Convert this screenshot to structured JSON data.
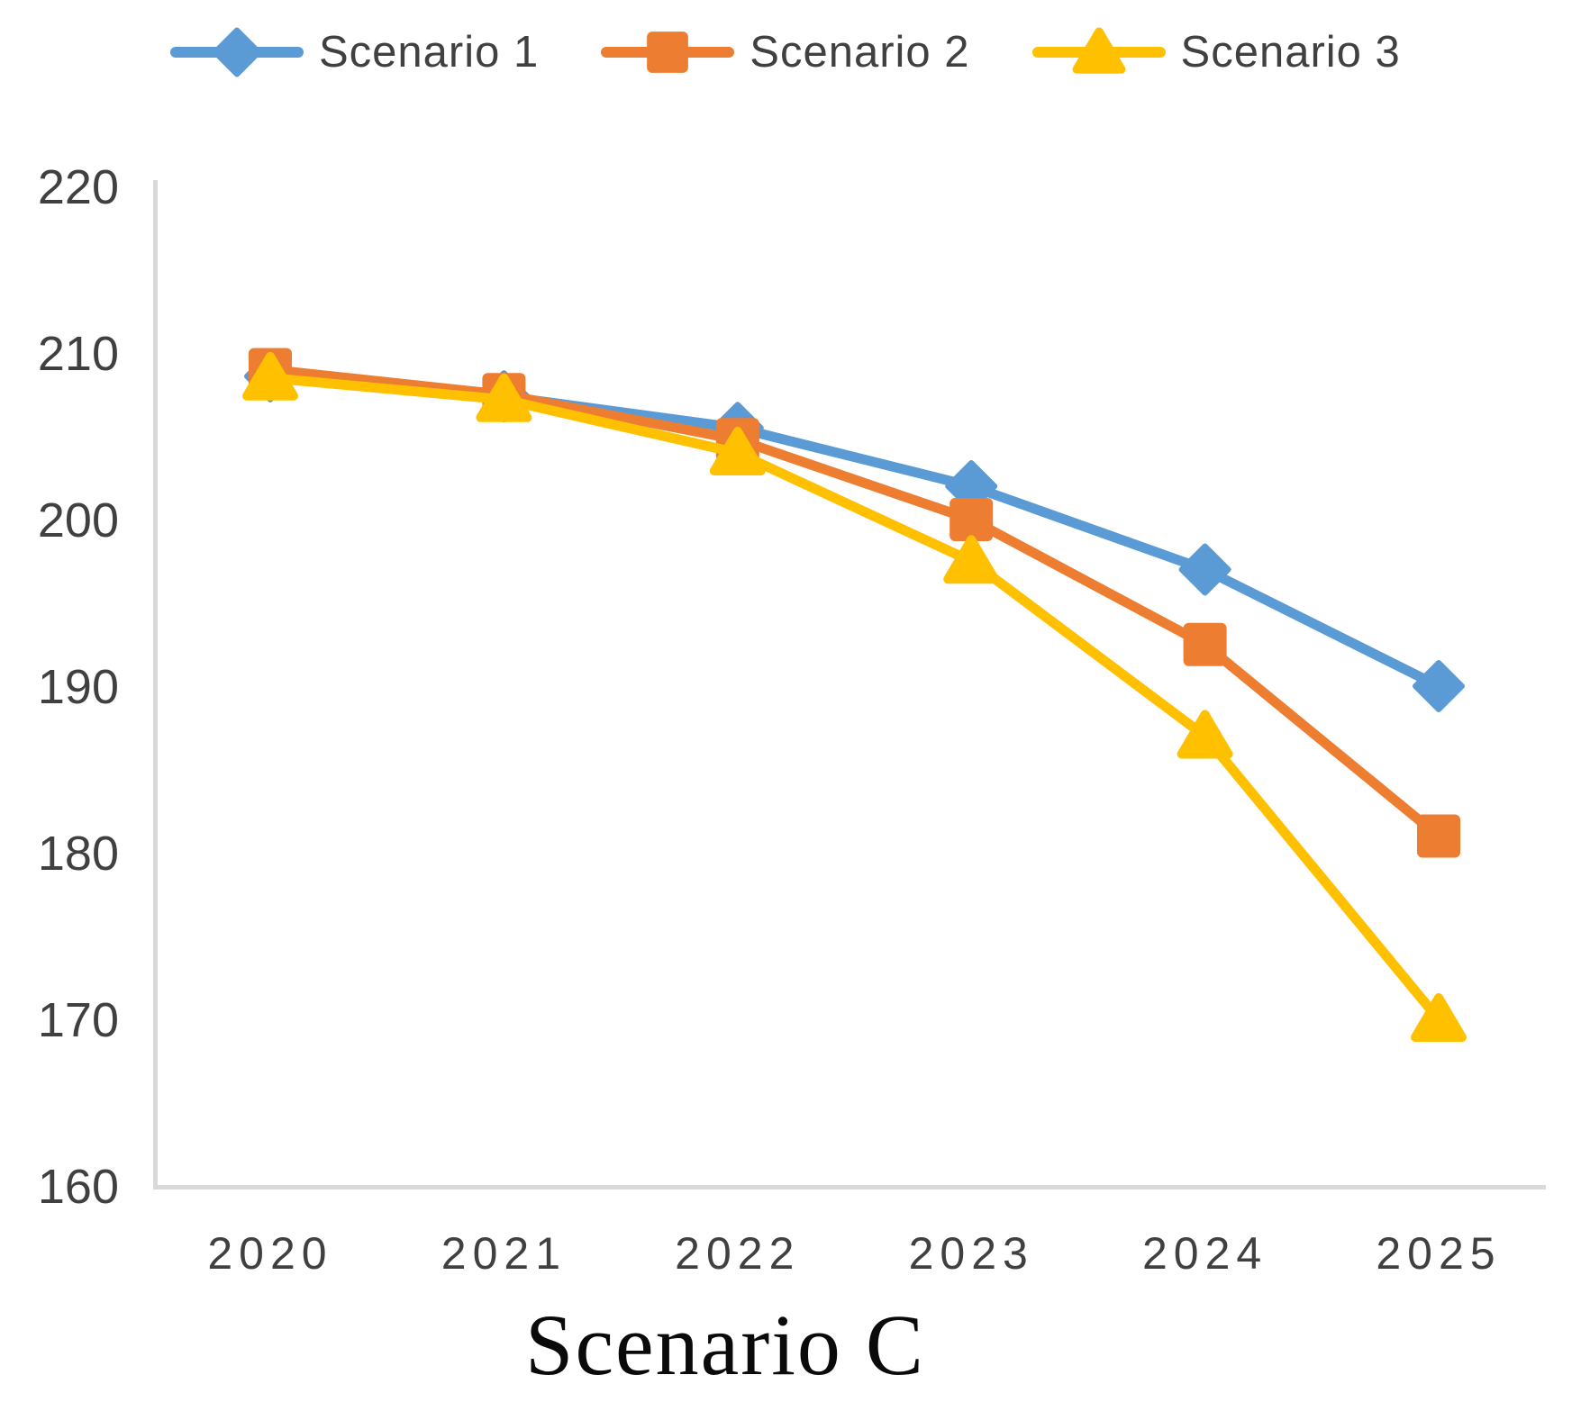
{
  "chart_data": {
    "type": "line",
    "title": "Scenario C",
    "xlabel": "",
    "ylabel": "",
    "x": [
      2020,
      2021,
      2022,
      2023,
      2024,
      2025
    ],
    "xticks": [
      "2020",
      "2021",
      "2022",
      "2023",
      "2024",
      "2025"
    ],
    "yticks": [
      "220",
      "210",
      "200",
      "190",
      "180",
      "170",
      "160"
    ],
    "ylim": [
      160,
      220
    ],
    "ytick_step": 10,
    "grid": false,
    "legend_position": "top",
    "series": [
      {
        "name": "Scenario 1",
        "color": "#5B9BD5",
        "marker": "diamond",
        "values": [
          208.6,
          207.4,
          205.5,
          202.0,
          197.0,
          190.0
        ]
      },
      {
        "name": "Scenario 2",
        "color": "#ED7D31",
        "marker": "square",
        "values": [
          209.0,
          207.5,
          204.8,
          200.0,
          192.5,
          181.0
        ]
      },
      {
        "name": "Scenario 3",
        "color": "#FFC000",
        "marker": "triangle",
        "values": [
          208.5,
          207.2,
          204.0,
          197.5,
          187.0,
          170.0
        ]
      }
    ],
    "axis_color": "#D9D9D9",
    "tick_label_color": "#404040",
    "title_color": "#0a0a0a"
  }
}
